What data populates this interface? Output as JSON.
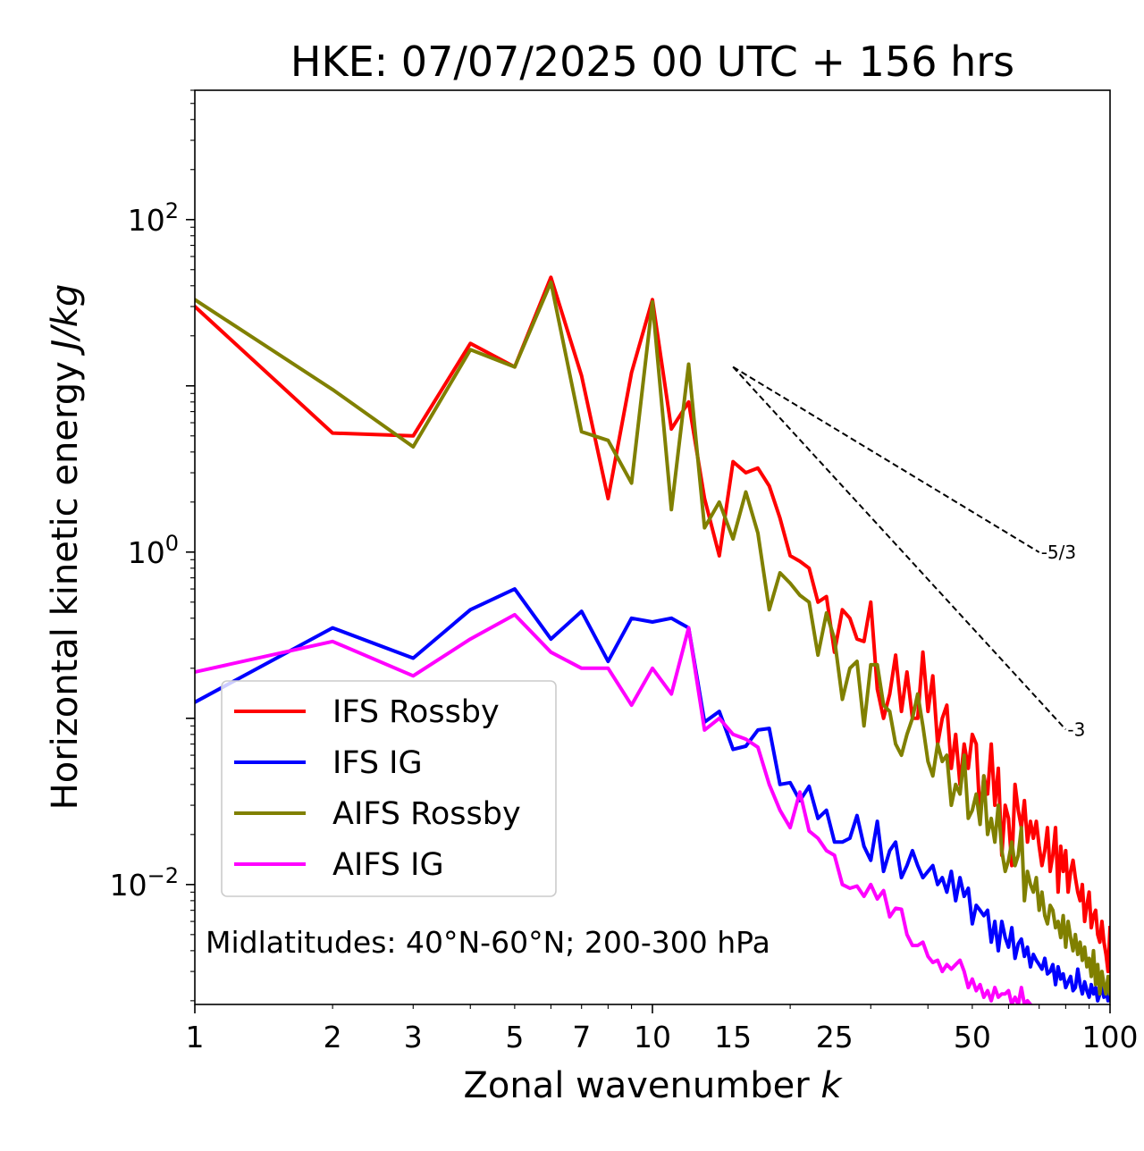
{
  "chart_data": {
    "type": "line",
    "title": "HKE: 07/07/2025 00 UTC + 156 hrs",
    "xlabel": "Zonal wavenumber",
    "xlabel_var": "k",
    "ylabel": "Horizontal kinetic energy",
    "ylabel_unit": "J/kg",
    "xscale": "log",
    "yscale": "log",
    "xlim": [
      1,
      100
    ],
    "ylim": [
      0.0019,
      600
    ],
    "x_ticks": [
      {
        "value": 1,
        "label": "1"
      },
      {
        "value": 2,
        "label": "2"
      },
      {
        "value": 3,
        "label": "3"
      },
      {
        "value": 5,
        "label": "5"
      },
      {
        "value": 7,
        "label": "7"
      },
      {
        "value": 10,
        "label": "10"
      },
      {
        "value": 15,
        "label": "15"
      },
      {
        "value": 25,
        "label": "25"
      },
      {
        "value": 50,
        "label": "50"
      },
      {
        "value": 100,
        "label": "100"
      }
    ],
    "y_ticks": [
      {
        "value": 0.01,
        "base": "10",
        "exp": "−2"
      },
      {
        "value": 1,
        "base": "10",
        "exp": "0"
      },
      {
        "value": 100,
        "base": "10",
        "exp": "2"
      }
    ],
    "grid": false,
    "legend_position": "lower-left",
    "annotation": "Midlatitudes: 40°N-60°N; 200-300 hPa",
    "reference_slopes": [
      {
        "label": "-5/3",
        "slope": -1.6667,
        "x_start": 15,
        "x_end": 70,
        "y_start": 13
      },
      {
        "label": "-3",
        "slope": -3,
        "x_start": 15,
        "x_end": 80,
        "y_start": 13
      }
    ],
    "series": [
      {
        "name": "IFS Rossby",
        "color": "#ff0000",
        "x": [
          1,
          2,
          3,
          4,
          5,
          6,
          7,
          8,
          9,
          10,
          11,
          12,
          13,
          14,
          15,
          16,
          17,
          18,
          19,
          20,
          21,
          22,
          23,
          24,
          25,
          26,
          27,
          28,
          29,
          30,
          31,
          32,
          33,
          34,
          35,
          36,
          37,
          38,
          39,
          40,
          41,
          42,
          43,
          44,
          45,
          46,
          47,
          48,
          49,
          50,
          51,
          52,
          53,
          54,
          55,
          56,
          57,
          58,
          59,
          60,
          61,
          62,
          63,
          64,
          65,
          66,
          67,
          68,
          69,
          70,
          71,
          72,
          73,
          74,
          75,
          76,
          77,
          78,
          79,
          80,
          81,
          82,
          83,
          84,
          85,
          86,
          87,
          88,
          89,
          90,
          91,
          92,
          93,
          94,
          95,
          96,
          97,
          98,
          99,
          100
        ],
        "y": [
          30,
          5.2,
          5.0,
          18,
          13,
          45,
          11.5,
          2.1,
          12,
          33,
          5.5,
          8,
          2.1,
          0.95,
          3.5,
          3.0,
          3.2,
          2.5,
          1.6,
          0.95,
          0.88,
          0.8,
          0.5,
          0.54,
          0.25,
          0.45,
          0.4,
          0.3,
          0.29,
          0.5,
          0.15,
          0.1,
          0.14,
          0.24,
          0.11,
          0.19,
          0.1,
          0.1,
          0.25,
          0.11,
          0.18,
          0.07,
          0.1,
          0.12,
          0.05,
          0.08,
          0.04,
          0.07,
          0.05,
          0.08,
          0.07,
          0.025,
          0.045,
          0.035,
          0.07,
          0.03,
          0.05,
          0.015,
          0.03,
          0.025,
          0.013,
          0.04,
          0.028,
          0.022,
          0.032,
          0.018,
          0.024,
          0.019,
          0.024,
          0.017,
          0.013,
          0.016,
          0.022,
          0.012,
          0.015,
          0.022,
          0.009,
          0.017,
          0.012,
          0.016,
          0.009,
          0.012,
          0.014,
          0.011,
          0.009,
          0.008,
          0.01,
          0.006,
          0.0075,
          0.009,
          0.0055,
          0.0065,
          0.007,
          0.005,
          0.0045,
          0.006,
          0.0045,
          0.0038,
          0.003,
          0.0055
        ]
      },
      {
        "name": "IFS IG",
        "color": "#0000ff",
        "x": [
          1,
          2,
          3,
          4,
          5,
          6,
          7,
          8,
          9,
          10,
          11,
          12,
          13,
          14,
          15,
          16,
          17,
          18,
          19,
          20,
          21,
          22,
          23,
          24,
          25,
          26,
          27,
          28,
          29,
          30,
          31,
          32,
          33,
          34,
          35,
          36,
          37,
          38,
          39,
          40,
          41,
          42,
          43,
          44,
          45,
          46,
          47,
          48,
          49,
          50,
          51,
          52,
          53,
          54,
          55,
          56,
          57,
          58,
          59,
          60,
          61,
          62,
          63,
          64,
          65,
          66,
          67,
          68,
          69,
          70,
          71,
          72,
          73,
          74,
          75,
          76,
          77,
          78,
          79,
          80,
          81,
          82,
          83,
          84,
          85,
          86,
          87,
          88,
          89,
          90,
          91,
          92,
          93,
          94,
          95,
          96,
          97,
          98,
          99,
          100
        ],
        "y": [
          0.125,
          0.35,
          0.23,
          0.45,
          0.6,
          0.3,
          0.44,
          0.22,
          0.4,
          0.38,
          0.4,
          0.35,
          0.095,
          0.11,
          0.065,
          0.068,
          0.085,
          0.087,
          0.04,
          0.041,
          0.032,
          0.039,
          0.025,
          0.028,
          0.018,
          0.018,
          0.019,
          0.026,
          0.017,
          0.014,
          0.024,
          0.012,
          0.016,
          0.018,
          0.011,
          0.013,
          0.016,
          0.013,
          0.011,
          0.012,
          0.013,
          0.01,
          0.011,
          0.009,
          0.012,
          0.008,
          0.011,
          0.0085,
          0.0095,
          0.0058,
          0.0075,
          0.007,
          0.0065,
          0.007,
          0.0045,
          0.006,
          0.004,
          0.006,
          0.0048,
          0.0042,
          0.0055,
          0.0036,
          0.0044,
          0.0047,
          0.0037,
          0.0042,
          0.0032,
          0.0038,
          0.0035,
          0.0033,
          0.0031,
          0.0036,
          0.0029,
          0.003,
          0.0033,
          0.0025,
          0.0032,
          0.0027,
          0.0029,
          0.0024,
          0.0026,
          0.0028,
          0.0023,
          0.0024,
          0.0031,
          0.0025,
          0.0022,
          0.0026,
          0.0023,
          0.0021,
          0.0025,
          0.0022,
          0.0024,
          0.002,
          0.0022,
          0.0024,
          0.0021,
          0.0023,
          0.002,
          0.0022
        ]
      },
      {
        "name": "AIFS Rossby",
        "color": "#808000",
        "x": [
          1,
          2,
          3,
          4,
          5,
          6,
          7,
          8,
          9,
          10,
          11,
          12,
          13,
          14,
          15,
          16,
          17,
          18,
          19,
          20,
          21,
          22,
          23,
          24,
          25,
          26,
          27,
          28,
          29,
          30,
          31,
          32,
          33,
          34,
          35,
          36,
          37,
          38,
          39,
          40,
          41,
          42,
          43,
          44,
          45,
          46,
          47,
          48,
          49,
          50,
          51,
          52,
          53,
          54,
          55,
          56,
          57,
          58,
          59,
          60,
          61,
          62,
          63,
          64,
          65,
          66,
          67,
          68,
          69,
          70,
          71,
          72,
          73,
          74,
          75,
          76,
          77,
          78,
          79,
          80,
          81,
          82,
          83,
          84,
          85,
          86,
          87,
          88,
          89,
          90,
          91,
          92,
          93,
          94,
          95,
          96,
          97,
          98,
          99,
          100
        ],
        "y": [
          33,
          9.5,
          4.3,
          16.5,
          13,
          42,
          5.3,
          4.7,
          2.6,
          32,
          1.8,
          13.5,
          1.4,
          2.0,
          1.2,
          2.3,
          1.3,
          0.45,
          0.75,
          0.65,
          0.55,
          0.5,
          0.24,
          0.43,
          0.3,
          0.13,
          0.2,
          0.22,
          0.09,
          0.21,
          0.21,
          0.12,
          0.11,
          0.07,
          0.06,
          0.08,
          0.1,
          0.14,
          0.09,
          0.055,
          0.045,
          0.07,
          0.055,
          0.06,
          0.03,
          0.04,
          0.035,
          0.06,
          0.025,
          0.028,
          0.035,
          0.023,
          0.045,
          0.02,
          0.025,
          0.018,
          0.03,
          0.016,
          0.012,
          0.014,
          0.018,
          0.013,
          0.015,
          0.022,
          0.008,
          0.012,
          0.01,
          0.009,
          0.011,
          0.007,
          0.009,
          0.0065,
          0.0058,
          0.0075,
          0.007,
          0.0055,
          0.006,
          0.0048,
          0.0065,
          0.0042,
          0.006,
          0.0048,
          0.004,
          0.005,
          0.0038,
          0.0045,
          0.0035,
          0.0042,
          0.0032,
          0.0036,
          0.0028,
          0.004,
          0.0025,
          0.0033,
          0.0022,
          0.003,
          0.0025,
          0.0022,
          0.0028,
          0.0022
        ]
      },
      {
        "name": "AIFS IG",
        "color": "#ff00ff",
        "x": [
          1,
          2,
          3,
          4,
          5,
          6,
          7,
          8,
          9,
          10,
          11,
          12,
          13,
          14,
          15,
          16,
          17,
          18,
          19,
          20,
          21,
          22,
          23,
          24,
          25,
          26,
          27,
          28,
          29,
          30,
          31,
          32,
          33,
          34,
          35,
          36,
          37,
          38,
          39,
          40,
          41,
          42,
          43,
          44,
          45,
          46,
          47,
          48,
          49,
          50,
          51,
          52,
          53,
          54,
          55,
          56,
          57,
          58,
          59,
          60,
          61,
          62,
          63,
          64,
          65,
          66,
          67,
          68,
          69,
          70
        ],
        "y": [
          0.19,
          0.29,
          0.18,
          0.3,
          0.42,
          0.25,
          0.2,
          0.2,
          0.12,
          0.2,
          0.14,
          0.35,
          0.085,
          0.1,
          0.08,
          0.075,
          0.067,
          0.04,
          0.028,
          0.022,
          0.036,
          0.021,
          0.019,
          0.016,
          0.015,
          0.01,
          0.0095,
          0.0098,
          0.0085,
          0.01,
          0.0082,
          0.0092,
          0.0064,
          0.0072,
          0.0071,
          0.005,
          0.0043,
          0.0043,
          0.0045,
          0.0037,
          0.0034,
          0.0035,
          0.003,
          0.0033,
          0.0031,
          0.0033,
          0.0035,
          0.003,
          0.0024,
          0.0027,
          0.0023,
          0.0025,
          0.0021,
          0.0023,
          0.002,
          0.0024,
          0.0021,
          0.0022,
          0.0022,
          0.0023,
          0.0019,
          0.0021,
          0.0019,
          0.0024,
          0.0019,
          0.002,
          0.0019,
          0.0017,
          0.0018,
          0.0016
        ]
      }
    ]
  }
}
